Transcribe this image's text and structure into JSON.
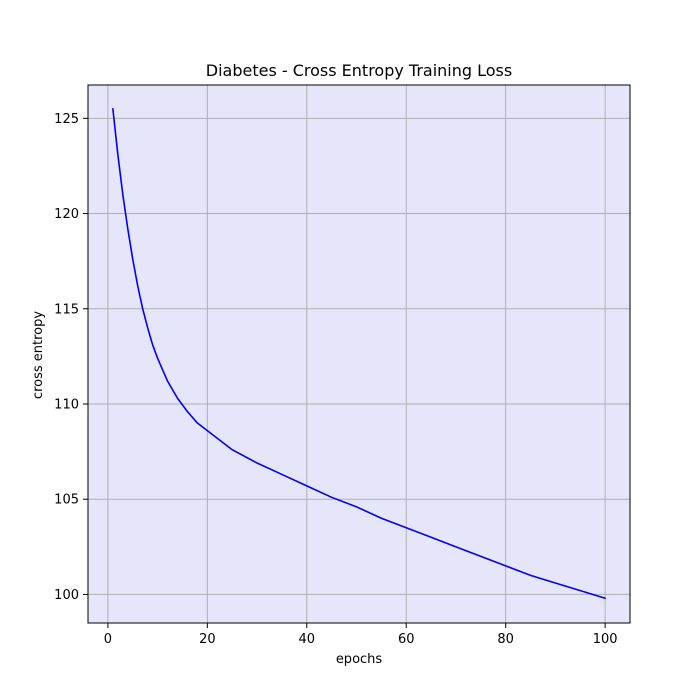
{
  "chart_data": {
    "type": "line",
    "title": "Diabetes - Cross Entropy Training Loss",
    "xlabel": "epochs",
    "ylabel": "cross entropy",
    "xlim": [
      -4,
      105
    ],
    "ylim": [
      98.5,
      126.75
    ],
    "xticks": [
      0,
      20,
      40,
      60,
      80,
      100
    ],
    "yticks": [
      100,
      105,
      110,
      115,
      120,
      125
    ],
    "grid": true,
    "plot_background": "#e6e6fa",
    "grid_color": "#b0b0b0",
    "series": [
      {
        "color": "#0000ff",
        "x": [
          1,
          2,
          3,
          4,
          5,
          6,
          7,
          8,
          9,
          10,
          12,
          14,
          16,
          18,
          20,
          25,
          30,
          35,
          40,
          45,
          50,
          55,
          60,
          65,
          70,
          75,
          80,
          85,
          90,
          95,
          100
        ],
        "y": [
          125.5,
          123.1,
          121.0,
          119.2,
          117.6,
          116.2,
          115.0,
          114.0,
          113.1,
          112.4,
          111.2,
          110.3,
          109.6,
          109.0,
          108.6,
          107.6,
          106.9,
          106.3,
          105.7,
          105.1,
          104.6,
          104.0,
          103.5,
          103.0,
          102.5,
          102.0,
          101.5,
          101.0,
          100.6,
          100.2,
          99.8
        ]
      }
    ]
  }
}
